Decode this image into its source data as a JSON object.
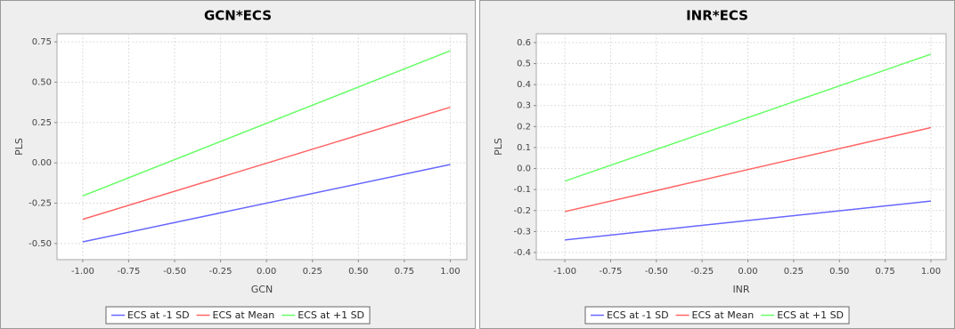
{
  "chart_data": [
    {
      "type": "line",
      "title": "GCN*ECS",
      "x_label": "GCN",
      "y_label": "PLS",
      "x": [
        -1,
        1
      ],
      "series": [
        {
          "name": "ECS at -1 SD",
          "color": "#6666ff",
          "values": [
            -0.49,
            -0.01
          ]
        },
        {
          "name": "ECS at Mean",
          "color": "#ff6666",
          "values": [
            -0.35,
            0.345
          ]
        },
        {
          "name": "ECS at +1 SD",
          "color": "#66ff66",
          "values": [
            -0.205,
            0.695
          ]
        }
      ],
      "xlim": [
        -1.14,
        1.09
      ],
      "xticks": [
        {
          "value": -1,
          "label": "-1.00"
        },
        {
          "value": -0.75,
          "label": "-0.75"
        },
        {
          "value": -0.5,
          "label": "-0.50"
        },
        {
          "value": -0.25,
          "label": "-0.25"
        },
        {
          "value": 0,
          "label": "0.00"
        },
        {
          "value": 0.25,
          "label": "0.25"
        },
        {
          "value": 0.5,
          "label": "0.50"
        },
        {
          "value": 0.75,
          "label": "0.75"
        },
        {
          "value": 1,
          "label": "1.00"
        }
      ],
      "ylim": [
        -0.6,
        0.8
      ],
      "yticks": [
        {
          "value": -0.5,
          "label": "-0.50"
        },
        -0.25,
        {
          "value": 0,
          "label": "0.00"
        },
        0.25,
        {
          "value": 0.5,
          "label": "0.50"
        },
        0.75
      ],
      "grid": true,
      "legend": "bottom"
    },
    {
      "type": "line",
      "title": "INR*ECS",
      "x_label": "INR",
      "y_label": "PLS",
      "x": [
        -1,
        1
      ],
      "series": [
        {
          "name": "ECS at -1 SD",
          "color": "#6666ff",
          "values": [
            -0.34,
            -0.155
          ]
        },
        {
          "name": "ECS at Mean",
          "color": "#ff6666",
          "values": [
            -0.205,
            0.195
          ]
        },
        {
          "name": "ECS at +1 SD",
          "color": "#66ff66",
          "values": [
            -0.06,
            0.545
          ]
        }
      ],
      "xlim": [
        -1.156,
        1.083
      ],
      "xticks": [
        {
          "value": -1,
          "label": "-1.00"
        },
        {
          "value": -0.75,
          "label": "-0.75"
        },
        {
          "value": -0.5,
          "label": "-0.50"
        },
        {
          "value": -0.25,
          "label": "-0.25"
        },
        {
          "value": 0,
          "label": "0.00"
        },
        {
          "value": 0.25,
          "label": "0.25"
        },
        {
          "value": 0.5,
          "label": "0.50"
        },
        {
          "value": 0.75,
          "label": "0.75"
        },
        {
          "value": 1,
          "label": "1.00"
        }
      ],
      "ylim": [
        -0.434,
        0.642
      ],
      "yticks": [
        -0.4,
        -0.3,
        -0.2,
        -0.1,
        {
          "value": 0,
          "label": "0.0"
        },
        0.1,
        0.2,
        0.3,
        0.4,
        0.5,
        0.6
      ],
      "grid": true,
      "legend": "bottom"
    }
  ]
}
